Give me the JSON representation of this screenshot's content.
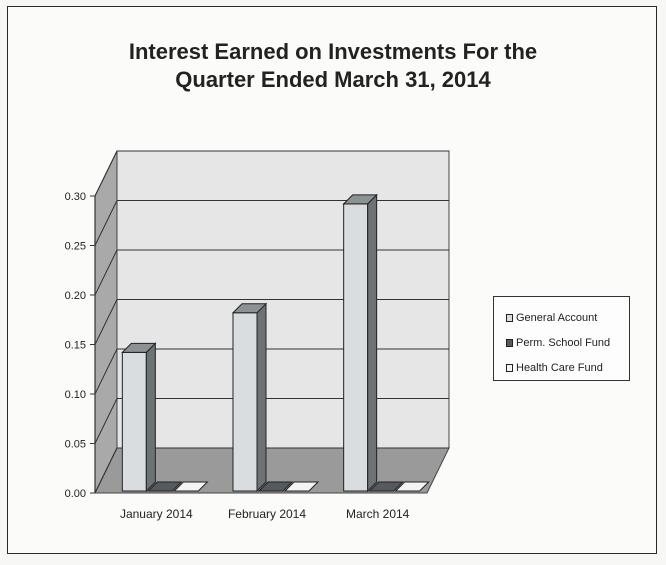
{
  "chart_data": {
    "type": "bar",
    "title_line1": "Interest Earned on Investments For the",
    "title_line2": "Quarter Ended March 31, 2014",
    "categories": [
      "January 2014",
      "February 2014",
      "March 2014"
    ],
    "series": [
      {
        "name": "General Account",
        "values": [
          0.14,
          0.18,
          0.29
        ],
        "color": "#d9dde0"
      },
      {
        "name": "Perm. School Fund",
        "values": [
          0.0,
          0.0,
          0.0
        ],
        "color": "#555a5e"
      },
      {
        "name": "Health Care Fund",
        "values": [
          0.0,
          0.0,
          0.0
        ],
        "color": "#f4f4f4"
      }
    ],
    "yticks": [
      "0.00",
      "0.05",
      "0.10",
      "0.15",
      "0.20",
      "0.25",
      "0.30"
    ],
    "ylim": [
      0,
      0.3
    ],
    "grid": true,
    "legend_position": "right",
    "three_d": true
  }
}
